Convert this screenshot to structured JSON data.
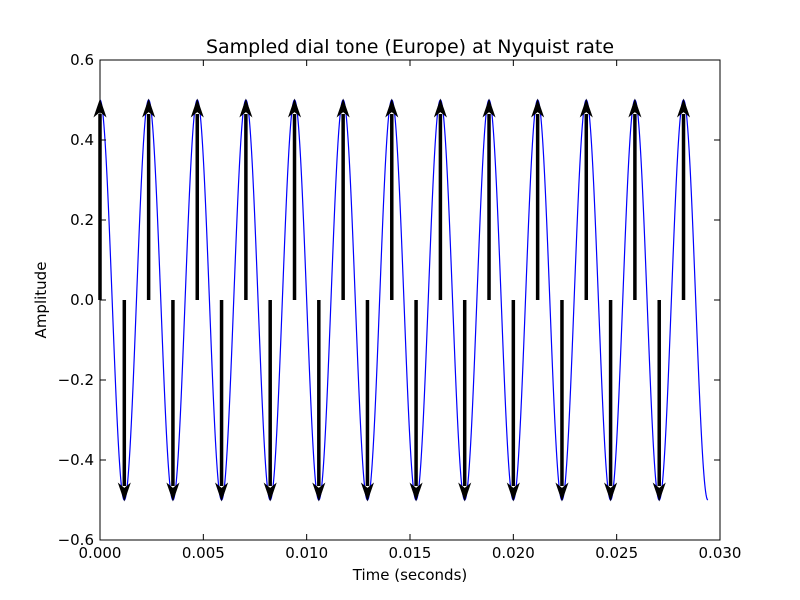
{
  "chart_data": {
    "type": "line",
    "title": "Sampled dial tone (Europe) at Nyquist rate",
    "xlabel": "Time (seconds)",
    "ylabel": "Amplitude",
    "xlim": [
      0.0,
      0.03
    ],
    "ylim": [
      -0.6,
      0.6
    ],
    "xticks": [
      0.0,
      0.005,
      0.01,
      0.015,
      0.02,
      0.025,
      0.03
    ],
    "xtick_labels": [
      "0.000",
      "0.005",
      "0.010",
      "0.015",
      "0.020",
      "0.025",
      "0.030"
    ],
    "yticks": [
      -0.6,
      -0.4,
      -0.2,
      0.0,
      0.2,
      0.4,
      0.6
    ],
    "ytick_labels": [
      "−0.6",
      "−0.4",
      "−0.2",
      "0.0",
      "0.2",
      "0.4",
      "0.6"
    ],
    "grid": false,
    "legend": "none",
    "series": [
      {
        "kind": "continuous",
        "amplitude": 0.5,
        "frequency_hz": 425,
        "t_start": 0.0,
        "t_end": 0.02941,
        "color": "#0000ff"
      },
      {
        "kind": "samples",
        "color": "#000000",
        "x": [
          0.0,
          0.001176,
          0.002353,
          0.003529,
          0.004706,
          0.005882,
          0.007059,
          0.008235,
          0.009412,
          0.010588,
          0.011765,
          0.012941,
          0.014118,
          0.015294,
          0.016471,
          0.017647,
          0.018824,
          0.02,
          0.021176,
          0.022353,
          0.023529,
          0.024706,
          0.025882,
          0.027059,
          0.028235
        ],
        "y": [
          0.5,
          -0.5,
          0.5,
          -0.5,
          0.5,
          -0.5,
          0.5,
          -0.5,
          0.5,
          -0.5,
          0.5,
          -0.5,
          0.5,
          -0.5,
          0.5,
          -0.5,
          0.5,
          -0.5,
          0.5,
          -0.5,
          0.5,
          -0.5,
          0.5,
          -0.5,
          0.5
        ]
      }
    ]
  }
}
